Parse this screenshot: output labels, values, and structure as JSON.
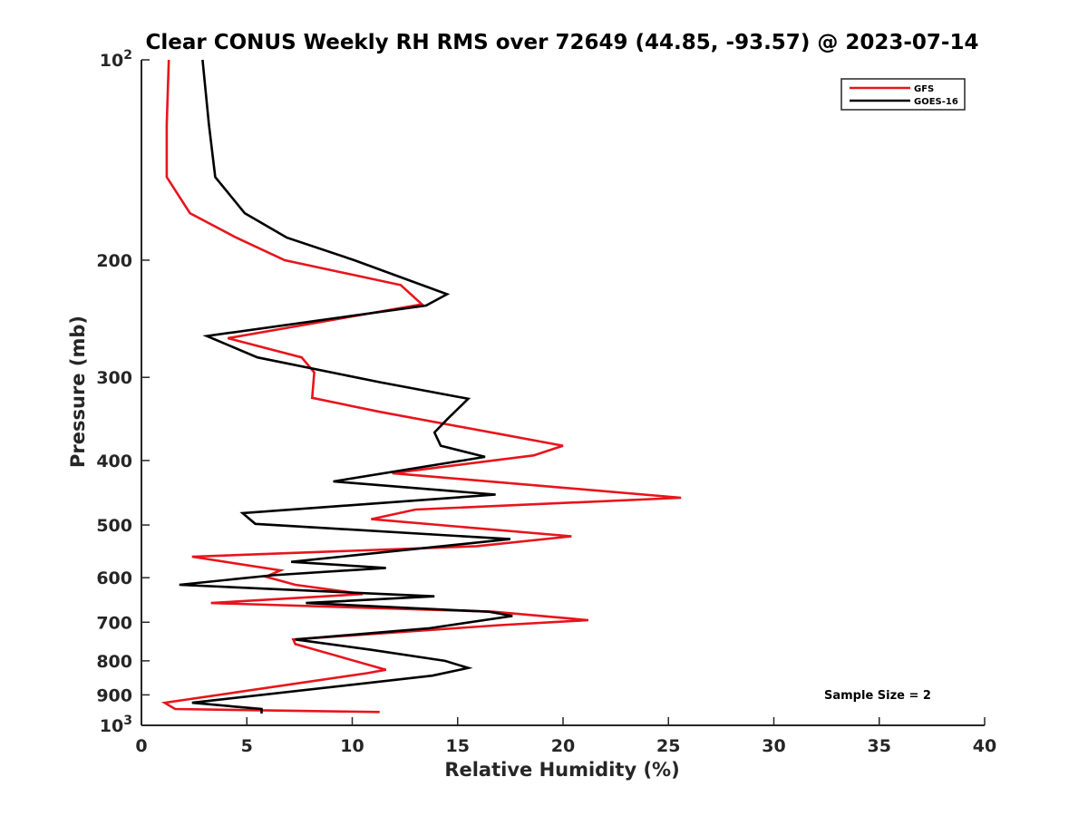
{
  "chart_data": {
    "type": "line",
    "title": "Clear CONUS Weekly RH RMS over 72649 (44.85, -93.57) @ 2023-07-14",
    "xlabel": "Relative Humidity (%)",
    "ylabel": "Pressure (mb)",
    "xlim": [
      0,
      40
    ],
    "ylim": [
      100,
      1000
    ],
    "y_scale": "log",
    "y_reversed": true,
    "x_ticks": [
      0,
      5,
      10,
      15,
      20,
      25,
      30,
      35,
      40
    ],
    "x_tick_labels": [
      "0",
      "5",
      "10",
      "15",
      "20",
      "25",
      "30",
      "35",
      "40"
    ],
    "y_ticks": [
      100,
      200,
      300,
      400,
      500,
      600,
      700,
      800,
      900,
      1000
    ],
    "y_tick_labels": [
      {
        "base": "10",
        "exp": "2"
      },
      {
        "base": "200",
        "exp": ""
      },
      {
        "base": "300",
        "exp": ""
      },
      {
        "base": "400",
        "exp": ""
      },
      {
        "base": "500",
        "exp": ""
      },
      {
        "base": "600",
        "exp": ""
      },
      {
        "base": "700",
        "exp": ""
      },
      {
        "base": "800",
        "exp": ""
      },
      {
        "base": "900",
        "exp": ""
      },
      {
        "base": "10",
        "exp": "3"
      }
    ],
    "grid": false,
    "legend_position": "top-right",
    "annotation": "Sample Size = 2",
    "series": [
      {
        "name": "GFS",
        "color": "#e8141c",
        "points": [
          [
            1.3,
            100
          ],
          [
            1.2,
            125
          ],
          [
            1.2,
            150
          ],
          [
            2.3,
            170
          ],
          [
            4.5,
            185
          ],
          [
            6.8,
            200
          ],
          [
            12.3,
            218
          ],
          [
            13.3,
            233
          ],
          [
            4.1,
            262
          ],
          [
            7.6,
            280
          ],
          [
            8.2,
            295
          ],
          [
            8.1,
            322
          ],
          [
            11.3,
            338
          ],
          [
            17.0,
            365
          ],
          [
            20.0,
            380
          ],
          [
            18.6,
            393
          ],
          [
            11.9,
            418
          ],
          [
            25.6,
            455
          ],
          [
            13.0,
            474
          ],
          [
            10.9,
            490
          ],
          [
            20.4,
            520
          ],
          [
            15.9,
            538
          ],
          [
            2.4,
            558
          ],
          [
            6.6,
            585
          ],
          [
            5.9,
            598
          ],
          [
            7.3,
            615
          ],
          [
            10.5,
            635
          ],
          [
            3.3,
            655
          ],
          [
            16.7,
            675
          ],
          [
            21.2,
            695
          ],
          [
            17.0,
            707
          ],
          [
            7.2,
            743
          ],
          [
            7.3,
            755
          ],
          [
            11.6,
            825
          ],
          [
            10.7,
            835
          ],
          [
            1.1,
            925
          ],
          [
            1.6,
            945
          ],
          [
            11.3,
            955
          ]
        ]
      },
      {
        "name": "GOES-16",
        "color": "#000000",
        "points": [
          [
            2.9,
            100
          ],
          [
            3.2,
            125
          ],
          [
            3.5,
            150
          ],
          [
            4.9,
            170
          ],
          [
            6.9,
            185
          ],
          [
            10.1,
            200
          ],
          [
            14.5,
            225
          ],
          [
            13.5,
            234
          ],
          [
            3.1,
            260
          ],
          [
            5.5,
            280
          ],
          [
            11.3,
            305
          ],
          [
            15.5,
            323
          ],
          [
            14.5,
            347
          ],
          [
            13.9,
            363
          ],
          [
            14.2,
            380
          ],
          [
            16.3,
            395
          ],
          [
            9.1,
            430
          ],
          [
            16.8,
            450
          ],
          [
            4.8,
            480
          ],
          [
            5.4,
            498
          ],
          [
            17.5,
            525
          ],
          [
            7.1,
            568
          ],
          [
            11.6,
            580
          ],
          [
            6.2,
            595
          ],
          [
            1.8,
            615
          ],
          [
            13.9,
            640
          ],
          [
            7.8,
            655
          ],
          [
            16.5,
            675
          ],
          [
            17.6,
            685
          ],
          [
            13.6,
            715
          ],
          [
            7.3,
            743
          ],
          [
            10.9,
            770
          ],
          [
            14.4,
            800
          ],
          [
            15.5,
            820
          ],
          [
            13.8,
            842
          ],
          [
            2.4,
            925
          ],
          [
            5.7,
            945
          ],
          [
            5.7,
            960
          ]
        ]
      }
    ]
  }
}
